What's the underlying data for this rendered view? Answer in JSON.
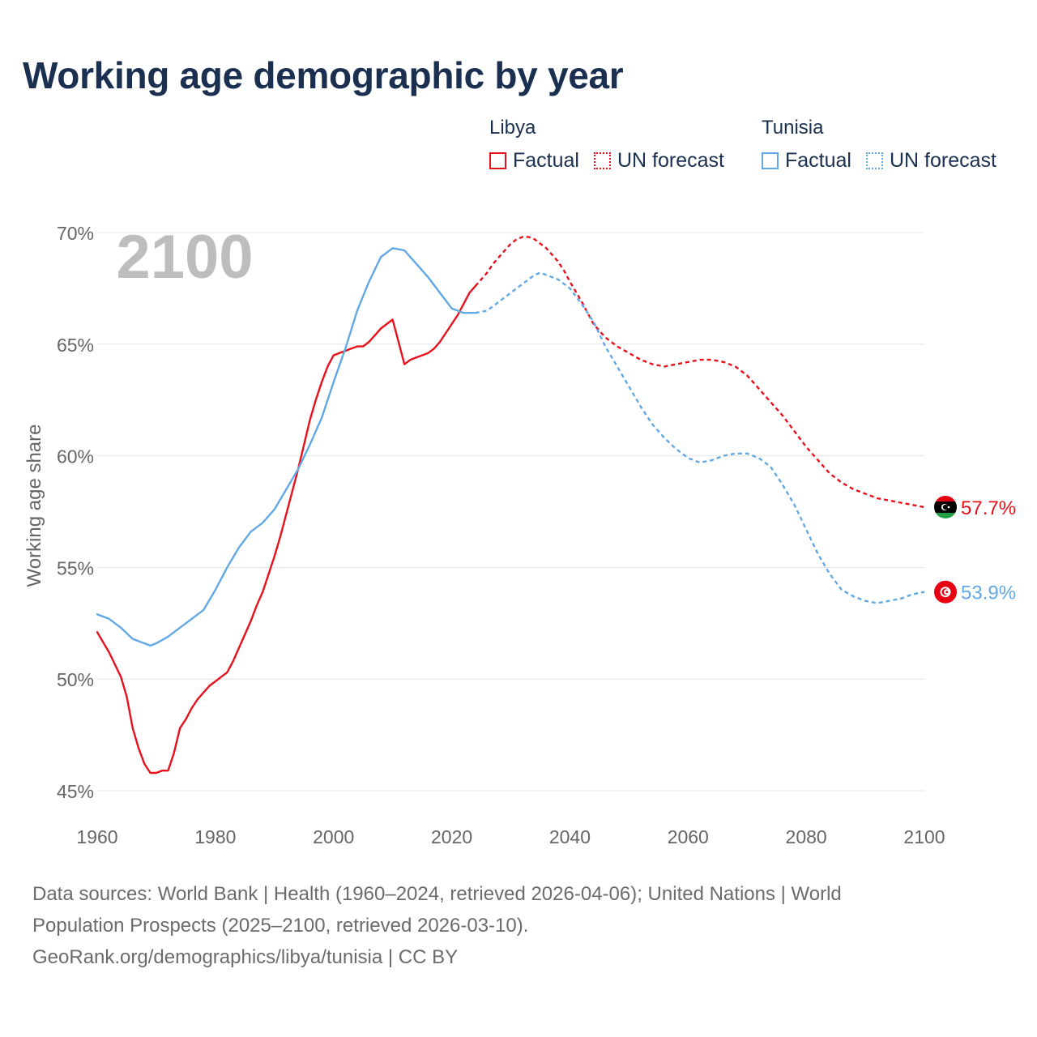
{
  "title": "Working age demographic by year",
  "legend": {
    "groups": [
      {
        "country": "Libya",
        "color": "#e8101a",
        "factual_label": "Factual",
        "forecast_label": "UN forecast"
      },
      {
        "country": "Tunisia",
        "color": "#62a8e5",
        "factual_label": "Factual",
        "forecast_label": "UN forecast"
      }
    ]
  },
  "chart_data": {
    "type": "line",
    "title": "Working age demographic by year",
    "year_watermark": "2100",
    "xlabel": "",
    "ylabel": "Working age share",
    "xlim": [
      1960,
      2100
    ],
    "ylim": [
      45,
      70
    ],
    "x_ticks": [
      "1960",
      "1980",
      "2000",
      "2020",
      "2040",
      "2060",
      "2080",
      "2100"
    ],
    "y_ticks": [
      "45%",
      "50%",
      "55%",
      "60%",
      "65%",
      "70%"
    ],
    "grid": true,
    "factual_range": [
      1960,
      2024
    ],
    "forecast_range": [
      2025,
      2100
    ],
    "series": [
      {
        "name": "Libya",
        "color": "#e8101a",
        "end_label": "57.7%",
        "points": [
          [
            1960,
            52.1
          ],
          [
            1962,
            51.2
          ],
          [
            1964,
            50.1
          ],
          [
            1965,
            49.2
          ],
          [
            1966,
            47.8
          ],
          [
            1967,
            46.9
          ],
          [
            1968,
            46.2
          ],
          [
            1969,
            45.8
          ],
          [
            1970,
            45.8
          ],
          [
            1971,
            45.9
          ],
          [
            1972,
            45.9
          ],
          [
            1973,
            46.7
          ],
          [
            1974,
            47.8
          ],
          [
            1975,
            48.2
          ],
          [
            1976,
            48.7
          ],
          [
            1977,
            49.1
          ],
          [
            1978,
            49.4
          ],
          [
            1979,
            49.7
          ],
          [
            1980,
            49.9
          ],
          [
            1981,
            50.1
          ],
          [
            1982,
            50.3
          ],
          [
            1983,
            50.8
          ],
          [
            1984,
            51.4
          ],
          [
            1985,
            52.0
          ],
          [
            1986,
            52.6
          ],
          [
            1987,
            53.3
          ],
          [
            1988,
            53.9
          ],
          [
            1989,
            54.7
          ],
          [
            1990,
            55.5
          ],
          [
            1991,
            56.4
          ],
          [
            1992,
            57.4
          ],
          [
            1993,
            58.4
          ],
          [
            1994,
            59.4
          ],
          [
            1995,
            60.5
          ],
          [
            1996,
            61.6
          ],
          [
            1997,
            62.5
          ],
          [
            1998,
            63.3
          ],
          [
            1999,
            64.0
          ],
          [
            2000,
            64.5
          ],
          [
            2001,
            64.6
          ],
          [
            2002,
            64.7
          ],
          [
            2003,
            64.8
          ],
          [
            2004,
            64.9
          ],
          [
            2005,
            64.9
          ],
          [
            2006,
            65.1
          ],
          [
            2007,
            65.4
          ],
          [
            2008,
            65.7
          ],
          [
            2009,
            65.9
          ],
          [
            2010,
            66.1
          ],
          [
            2011,
            65.1
          ],
          [
            2012,
            64.1
          ],
          [
            2013,
            64.3
          ],
          [
            2014,
            64.4
          ],
          [
            2015,
            64.5
          ],
          [
            2016,
            64.6
          ],
          [
            2017,
            64.8
          ],
          [
            2018,
            65.1
          ],
          [
            2019,
            65.5
          ],
          [
            2020,
            65.9
          ],
          [
            2021,
            66.3
          ],
          [
            2022,
            66.8
          ],
          [
            2023,
            67.3
          ],
          [
            2024,
            67.6
          ],
          [
            2025,
            67.9
          ],
          [
            2026,
            68.2
          ],
          [
            2027,
            68.6
          ],
          [
            2028,
            68.9
          ],
          [
            2029,
            69.2
          ],
          [
            2030,
            69.5
          ],
          [
            2031,
            69.7
          ],
          [
            2032,
            69.8
          ],
          [
            2033,
            69.8
          ],
          [
            2034,
            69.7
          ],
          [
            2035,
            69.5
          ],
          [
            2036,
            69.3
          ],
          [
            2037,
            69.0
          ],
          [
            2038,
            68.7
          ],
          [
            2039,
            68.3
          ],
          [
            2040,
            67.8
          ],
          [
            2042,
            66.9
          ],
          [
            2044,
            65.9
          ],
          [
            2046,
            65.3
          ],
          [
            2048,
            64.9
          ],
          [
            2050,
            64.6
          ],
          [
            2052,
            64.3
          ],
          [
            2054,
            64.1
          ],
          [
            2056,
            64.0
          ],
          [
            2058,
            64.1
          ],
          [
            2060,
            64.2
          ],
          [
            2062,
            64.3
          ],
          [
            2064,
            64.3
          ],
          [
            2066,
            64.2
          ],
          [
            2068,
            64.0
          ],
          [
            2070,
            63.6
          ],
          [
            2072,
            63.0
          ],
          [
            2074,
            62.4
          ],
          [
            2076,
            61.8
          ],
          [
            2078,
            61.1
          ],
          [
            2080,
            60.4
          ],
          [
            2082,
            59.8
          ],
          [
            2084,
            59.2
          ],
          [
            2086,
            58.8
          ],
          [
            2088,
            58.5
          ],
          [
            2090,
            58.3
          ],
          [
            2092,
            58.1
          ],
          [
            2094,
            58.0
          ],
          [
            2096,
            57.9
          ],
          [
            2098,
            57.8
          ],
          [
            2100,
            57.7
          ]
        ]
      },
      {
        "name": "Tunisia",
        "color": "#62a8e5",
        "end_label": "53.9%",
        "points": [
          [
            1960,
            52.9
          ],
          [
            1962,
            52.7
          ],
          [
            1964,
            52.3
          ],
          [
            1966,
            51.8
          ],
          [
            1968,
            51.6
          ],
          [
            1969,
            51.5
          ],
          [
            1970,
            51.6
          ],
          [
            1972,
            51.9
          ],
          [
            1974,
            52.3
          ],
          [
            1976,
            52.7
          ],
          [
            1978,
            53.1
          ],
          [
            1980,
            54.0
          ],
          [
            1982,
            55.0
          ],
          [
            1984,
            55.9
          ],
          [
            1986,
            56.6
          ],
          [
            1988,
            57.0
          ],
          [
            1990,
            57.6
          ],
          [
            1992,
            58.5
          ],
          [
            1994,
            59.4
          ],
          [
            1996,
            60.5
          ],
          [
            1998,
            61.7
          ],
          [
            2000,
            63.3
          ],
          [
            2002,
            64.8
          ],
          [
            2004,
            66.5
          ],
          [
            2006,
            67.8
          ],
          [
            2008,
            68.9
          ],
          [
            2010,
            69.3
          ],
          [
            2012,
            69.2
          ],
          [
            2014,
            68.6
          ],
          [
            2016,
            68.0
          ],
          [
            2018,
            67.3
          ],
          [
            2020,
            66.6
          ],
          [
            2022,
            66.4
          ],
          [
            2024,
            66.4
          ],
          [
            2026,
            66.5
          ],
          [
            2028,
            66.9
          ],
          [
            2030,
            67.3
          ],
          [
            2032,
            67.7
          ],
          [
            2034,
            68.1
          ],
          [
            2035,
            68.2
          ],
          [
            2036,
            68.1
          ],
          [
            2038,
            67.9
          ],
          [
            2040,
            67.5
          ],
          [
            2042,
            66.8
          ],
          [
            2044,
            66.0
          ],
          [
            2046,
            64.9
          ],
          [
            2048,
            64.0
          ],
          [
            2050,
            63.1
          ],
          [
            2052,
            62.2
          ],
          [
            2054,
            61.4
          ],
          [
            2056,
            60.8
          ],
          [
            2058,
            60.3
          ],
          [
            2060,
            59.9
          ],
          [
            2062,
            59.7
          ],
          [
            2064,
            59.8
          ],
          [
            2066,
            60.0
          ],
          [
            2068,
            60.1
          ],
          [
            2070,
            60.1
          ],
          [
            2072,
            59.9
          ],
          [
            2074,
            59.5
          ],
          [
            2076,
            58.7
          ],
          [
            2078,
            57.8
          ],
          [
            2080,
            56.7
          ],
          [
            2082,
            55.6
          ],
          [
            2084,
            54.7
          ],
          [
            2086,
            54.0
          ],
          [
            2088,
            53.7
          ],
          [
            2090,
            53.5
          ],
          [
            2092,
            53.4
          ],
          [
            2094,
            53.5
          ],
          [
            2096,
            53.6
          ],
          [
            2098,
            53.8
          ],
          [
            2100,
            53.9
          ]
        ]
      }
    ]
  },
  "sources": {
    "line1": "Data sources: World Bank | Health (1960–2024, retrieved 2026-04-06); United Nations | World",
    "line2": "Population Prospects (2025–2100, retrieved 2026-03-10).",
    "line3": "GeoRank.org/demographics/libya/tunisia | CC BY"
  }
}
